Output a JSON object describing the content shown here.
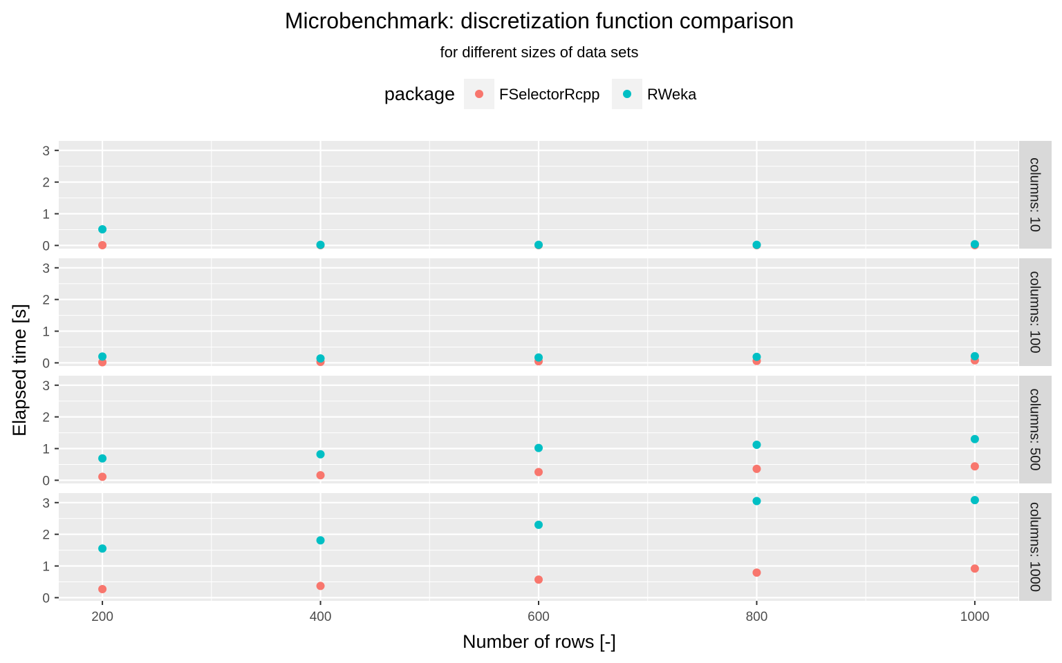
{
  "chart_data": {
    "type": "scatter",
    "title": "Microbenchmark: discretization function comparison",
    "subtitle": "for different sizes of data sets",
    "xlabel": "Number of rows [-]",
    "ylabel": "Elapsed time [s]",
    "legend": {
      "title": "package",
      "position": "top",
      "entries": [
        "FSelectorRcpp",
        "RWeka"
      ]
    },
    "colors": {
      "FSelectorRcpp": "#F8766D",
      "RWeka": "#00BFC4",
      "panel_background": "#EBEBEB",
      "strip_background": "#D9D9D9",
      "grid": "#FFFFFF"
    },
    "grid": true,
    "xlim": [
      160,
      1040
    ],
    "ylim": [
      -0.1,
      3.3
    ],
    "x_ticks": [
      200,
      400,
      600,
      800,
      1000
    ],
    "x_tick_labels": [
      "200",
      "400",
      "600",
      "800",
      "1000"
    ],
    "y_ticks": [
      0,
      1,
      2,
      3
    ],
    "y_tick_labels": [
      "0",
      "1",
      "2",
      "3"
    ],
    "facets": [
      {
        "label": "columns: 10",
        "series": [
          {
            "name": "FSelectorRcpp",
            "x": [
              200,
              400,
              600,
              800,
              1000
            ],
            "y": [
              0.01,
              0.01,
              0.01,
              0.01,
              0.01
            ]
          },
          {
            "name": "RWeka",
            "x": [
              200,
              400,
              600,
              800,
              1000
            ],
            "y": [
              0.51,
              0.02,
              0.02,
              0.02,
              0.04
            ]
          }
        ]
      },
      {
        "label": "columns: 100",
        "series": [
          {
            "name": "FSelectorRcpp",
            "x": [
              200,
              400,
              600,
              800,
              1000
            ],
            "y": [
              0.02,
              0.03,
              0.05,
              0.06,
              0.08
            ]
          },
          {
            "name": "RWeka",
            "x": [
              200,
              400,
              600,
              800,
              1000
            ],
            "y": [
              0.2,
              0.14,
              0.17,
              0.19,
              0.21
            ]
          }
        ]
      },
      {
        "label": "columns: 500",
        "series": [
          {
            "name": "FSelectorRcpp",
            "x": [
              200,
              400,
              600,
              800,
              1000
            ],
            "y": [
              0.11,
              0.16,
              0.26,
              0.36,
              0.44
            ]
          },
          {
            "name": "RWeka",
            "x": [
              200,
              400,
              600,
              800,
              1000
            ],
            "y": [
              0.69,
              0.82,
              1.02,
              1.12,
              1.3
            ]
          }
        ]
      },
      {
        "label": "columns: 1000",
        "series": [
          {
            "name": "FSelectorRcpp",
            "x": [
              200,
              400,
              600,
              800,
              1000
            ],
            "y": [
              0.27,
              0.37,
              0.57,
              0.79,
              0.92
            ]
          },
          {
            "name": "RWeka",
            "x": [
              200,
              400,
              600,
              800,
              1000
            ],
            "y": [
              1.55,
              1.81,
              2.3,
              3.05,
              3.08
            ]
          }
        ]
      }
    ]
  }
}
